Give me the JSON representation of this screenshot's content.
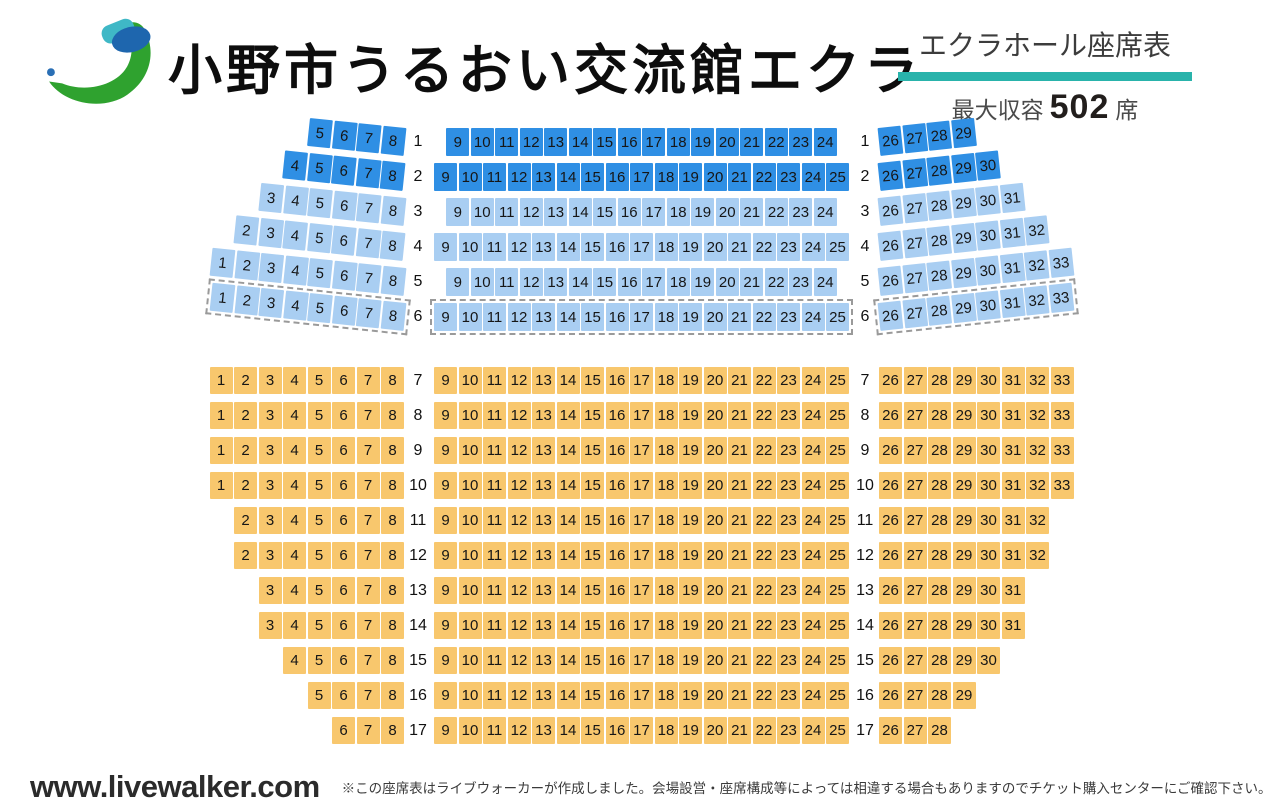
{
  "header": {
    "title": "小野市うるおい交流館エクラ",
    "hall_label": "エクラホール座席表",
    "capacity_label": "最大収容",
    "capacity_value": "502",
    "capacity_unit": "席",
    "accent_color": "#29b3ab"
  },
  "logo": {
    "description": "ekura-swoosh-logo",
    "colors": {
      "green": "#2fa22f",
      "blue": "#1e66ae",
      "teal": "#3fb8c6",
      "dot_blue": "#2a6fb5"
    }
  },
  "colors": {
    "seat_front_dark_blue": "#2f8fe4",
    "seat_front_light_blue": "#a9cef2",
    "seat_rear_orange": "#f8c76d",
    "seat_number_text": "#161616",
    "dashed_row_border": "#9a9a9a"
  },
  "seatmap": {
    "sections": [
      {
        "name": "front-blue",
        "css": "front",
        "rows": [
          {
            "row": "1",
            "tier": "dark",
            "left": {
              "from": 5,
              "to": 8
            },
            "center": {
              "from": 9,
              "to": 24
            },
            "right": {
              "from": 26,
              "to": 29
            }
          },
          {
            "row": "2",
            "tier": "dark",
            "left": {
              "from": 4,
              "to": 8
            },
            "center": {
              "from": 9,
              "to": 25
            },
            "right": {
              "from": 26,
              "to": 30
            }
          },
          {
            "row": "3",
            "tier": "light",
            "left": {
              "from": 3,
              "to": 8
            },
            "center": {
              "from": 9,
              "to": 24
            },
            "right": {
              "from": 26,
              "to": 31
            }
          },
          {
            "row": "4",
            "tier": "light",
            "left": {
              "from": 2,
              "to": 8
            },
            "center": {
              "from": 9,
              "to": 25
            },
            "right": {
              "from": 26,
              "to": 32
            }
          },
          {
            "row": "5",
            "tier": "light",
            "left": {
              "from": 1,
              "to": 8
            },
            "center": {
              "from": 9,
              "to": 24
            },
            "right": {
              "from": 26,
              "to": 33
            }
          },
          {
            "row": "6",
            "tier": "light",
            "dashed": true,
            "left": {
              "from": 1,
              "to": 8
            },
            "center": {
              "from": 9,
              "to": 25
            },
            "right": {
              "from": 26,
              "to": 33
            }
          }
        ]
      },
      {
        "name": "rear-orange",
        "css": "rear",
        "rows": [
          {
            "row": "7",
            "tier": "orange",
            "left": {
              "from": 1,
              "to": 8
            },
            "center": {
              "from": 9,
              "to": 25
            },
            "right": {
              "from": 26,
              "to": 33
            }
          },
          {
            "row": "8",
            "tier": "orange",
            "left": {
              "from": 1,
              "to": 8
            },
            "center": {
              "from": 9,
              "to": 25
            },
            "right": {
              "from": 26,
              "to": 33
            }
          },
          {
            "row": "9",
            "tier": "orange",
            "left": {
              "from": 1,
              "to": 8
            },
            "center": {
              "from": 9,
              "to": 25
            },
            "right": {
              "from": 26,
              "to": 33
            }
          },
          {
            "row": "10",
            "tier": "orange",
            "left": {
              "from": 1,
              "to": 8
            },
            "center": {
              "from": 9,
              "to": 25
            },
            "right": {
              "from": 26,
              "to": 33
            }
          },
          {
            "row": "11",
            "tier": "orange",
            "left": {
              "from": 2,
              "to": 8
            },
            "center": {
              "from": 9,
              "to": 25
            },
            "right": {
              "from": 26,
              "to": 32
            }
          },
          {
            "row": "12",
            "tier": "orange",
            "left": {
              "from": 2,
              "to": 8
            },
            "center": {
              "from": 9,
              "to": 25
            },
            "right": {
              "from": 26,
              "to": 32
            }
          },
          {
            "row": "13",
            "tier": "orange",
            "left": {
              "from": 3,
              "to": 8
            },
            "center": {
              "from": 9,
              "to": 25
            },
            "right": {
              "from": 26,
              "to": 31
            }
          },
          {
            "row": "14",
            "tier": "orange",
            "left": {
              "from": 3,
              "to": 8
            },
            "center": {
              "from": 9,
              "to": 25
            },
            "right": {
              "from": 26,
              "to": 31
            }
          },
          {
            "row": "15",
            "tier": "orange",
            "left": {
              "from": 4,
              "to": 8
            },
            "center": {
              "from": 9,
              "to": 25
            },
            "right": {
              "from": 26,
              "to": 30
            }
          },
          {
            "row": "16",
            "tier": "orange",
            "left": {
              "from": 5,
              "to": 8
            },
            "center": {
              "from": 9,
              "to": 25
            },
            "right": {
              "from": 26,
              "to": 29
            }
          },
          {
            "row": "17",
            "tier": "orange",
            "left": {
              "from": 6,
              "to": 8
            },
            "center": {
              "from": 9,
              "to": 25
            },
            "right": {
              "from": 26,
              "to": 28
            }
          }
        ]
      }
    ]
  },
  "footer": {
    "site": "www.livewalker.com",
    "note": "※この座席表はライブウォーカーが作成しました。会場設営・座席構成等によっては相違する場合もありますのでチケット購入センターにご確認下さい。"
  }
}
